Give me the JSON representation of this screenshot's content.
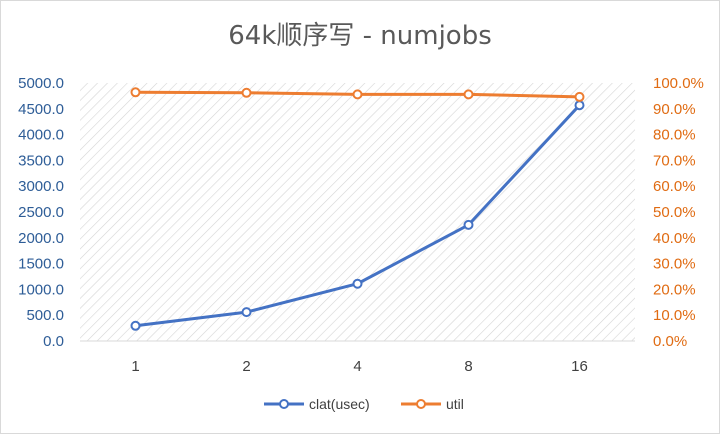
{
  "chart_data": {
    "type": "line",
    "title": "64k顺序写 - numjobs",
    "categories": [
      "1",
      "2",
      "4",
      "8",
      "16"
    ],
    "series": [
      {
        "name": "clat(usec)",
        "axis": "left",
        "color": "#4472c4",
        "values": [
          295,
          560,
          1110,
          2250,
          4570
        ]
      },
      {
        "name": "util",
        "axis": "right",
        "color": "#ed7d31",
        "values": [
          96.4,
          96.2,
          95.6,
          95.6,
          94.6
        ]
      }
    ],
    "y_left": {
      "min": 0,
      "max": 5000,
      "step": 500,
      "tick_labels": [
        "0.0",
        "500.0",
        "1000.0",
        "1500.0",
        "2000.0",
        "2500.0",
        "3000.0",
        "3500.0",
        "4000.0",
        "4500.0",
        "5000.0"
      ]
    },
    "y_right": {
      "min": 0,
      "max": 100,
      "step": 10,
      "tick_labels": [
        "0.0%",
        "10.0%",
        "20.0%",
        "30.0%",
        "40.0%",
        "50.0%",
        "60.0%",
        "70.0%",
        "80.0%",
        "90.0%",
        "100.0%"
      ]
    },
    "plot_background": "diagonal hatch",
    "legend": "bottom-center"
  }
}
